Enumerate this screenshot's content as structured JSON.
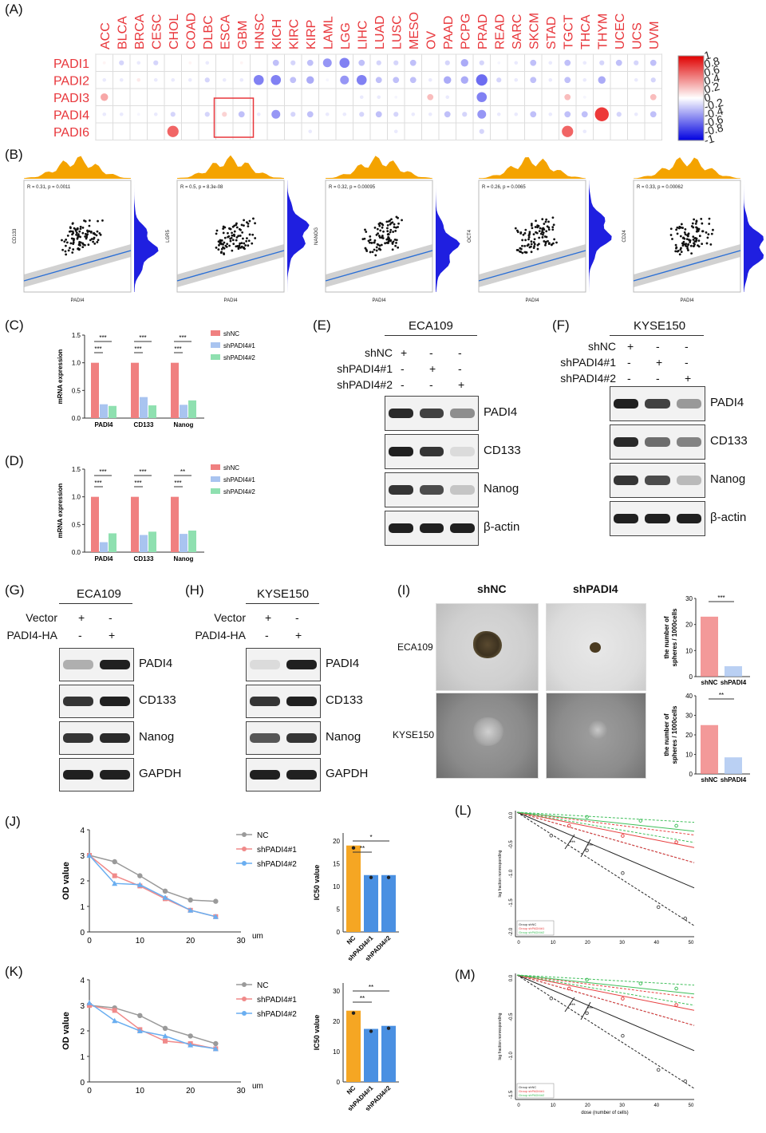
{
  "panel_labels": [
    "(A)",
    "(B)",
    "(C)",
    "(D)",
    "(E)",
    "(F)",
    "(G)",
    "(H)",
    "(I)",
    "(J)",
    "(K)",
    "(L)",
    "(M)"
  ],
  "colors": {
    "red": "#e8363b",
    "blue": "#3b3bd6",
    "salmon": "#f08080",
    "lightblue": "#a9c4f0",
    "mint": "#8fe0b0",
    "orange": "#f5a623",
    "barblue": "#4a90e2",
    "marginal_orange": "#f4a300",
    "marginal_blue": "#1f1fe0"
  },
  "panelA": {
    "cancers": [
      "ACC",
      "BLCA",
      "BRCA",
      "CESC",
      "CHOL",
      "COAD",
      "DLBC",
      "ESCA",
      "GBM",
      "HNSC",
      "KICH",
      "KIRC",
      "KIRP",
      "LAML",
      "LGG",
      "LIHC",
      "LUAD",
      "LUSC",
      "MESO",
      "OV",
      "PAAD",
      "PCPG",
      "PRAD",
      "READ",
      "SARC",
      "SKCM",
      "STAD",
      "TGCT",
      "THCA",
      "THYM",
      "UCEC",
      "UCS",
      "UVM"
    ],
    "genes": [
      "PADI1",
      "PADI2",
      "PADI3",
      "PADI4",
      "PADI6"
    ],
    "scale_labels": [
      "1",
      "0.8",
      "0.6",
      "0.4",
      "0.2",
      "0",
      "-0.2",
      "-0.4",
      "-0.6",
      "-0.8",
      "-1"
    ],
    "chart_data": {
      "type": "heatmap",
      "rows": [
        "PADI1",
        "PADI2",
        "PADI3",
        "PADI4",
        "PADI6"
      ],
      "columns": [
        "ACC",
        "BLCA",
        "BRCA",
        "CESC",
        "CHOL",
        "COAD",
        "DLBC",
        "ESCA",
        "GBM",
        "HNSC",
        "KICH",
        "KIRC",
        "KIRP",
        "LAML",
        "LGG",
        "LIHC",
        "LUAD",
        "LUSC",
        "MESO",
        "OV",
        "PAAD",
        "PCPG",
        "PRAD",
        "READ",
        "SARC",
        "SKCM",
        "STAD",
        "TGCT",
        "THCA",
        "THYM",
        "UCEC",
        "UCS",
        "UVM"
      ],
      "values": [
        [
          0.05,
          -0.2,
          -0.1,
          -0.2,
          0,
          0.05,
          -0.1,
          0,
          0.05,
          0,
          -0.3,
          -0.2,
          -0.3,
          -0.5,
          -0.6,
          -0.3,
          -0.2,
          -0.2,
          -0.3,
          0,
          -0.2,
          -0.4,
          -0.2,
          -0.05,
          -0.1,
          -0.3,
          -0.1,
          -0.3,
          -0.1,
          -0.2,
          -0.3,
          -0.2,
          -0.3
        ],
        [
          -0.1,
          -0.1,
          0.1,
          -0.1,
          -0.1,
          -0.1,
          -0.2,
          -0.1,
          -0.1,
          -0.6,
          -0.6,
          -0.3,
          -0.4,
          -0.05,
          -0.5,
          -0.6,
          -0.3,
          -0.3,
          -0.3,
          -0.1,
          -0.4,
          -0.4,
          -0.7,
          -0.2,
          -0.1,
          -0.3,
          -0.1,
          -0.3,
          -0.1,
          -0.4,
          0,
          -0.1,
          -0.2
        ],
        [
          0.4,
          0,
          0,
          0,
          0,
          0,
          0,
          0,
          0,
          0,
          0,
          0,
          0,
          0,
          0,
          -0.1,
          -0.1,
          -0.05,
          0,
          0.3,
          -0.1,
          0,
          -0.6,
          0,
          0,
          0,
          0,
          0.3,
          -0.05,
          0,
          0,
          0,
          0.3
        ],
        [
          -0.1,
          -0.1,
          -0.05,
          -0.1,
          -0.2,
          0,
          -0.2,
          0.2,
          -0.3,
          -0.1,
          -0.5,
          -0.2,
          -0.3,
          -0.1,
          -0.1,
          -0.2,
          -0.3,
          -0.2,
          -0.1,
          -0.1,
          -0.3,
          -0.2,
          -0.5,
          -0.1,
          -0.1,
          -0.3,
          -0.1,
          -0.3,
          -0.3,
          0.9,
          -0.2,
          -0.1,
          -0.3
        ],
        [
          0,
          0,
          0,
          0,
          0.7,
          0,
          0,
          0,
          0,
          0,
          0,
          0,
          -0.1,
          0,
          0,
          0,
          0,
          -0.1,
          0,
          0,
          0,
          0,
          -0.2,
          0,
          0,
          0,
          0,
          0.7,
          -0.1,
          0,
          0,
          0,
          0
        ]
      ],
      "legend_range": [
        -1,
        1
      ]
    }
  },
  "panelB": {
    "plots": [
      {
        "stat": "R = 0.31, p = 0.0011",
        "ylabel": "CD133",
        "xlabel": "PADI4"
      },
      {
        "stat": "R = 0.5, p = 8.3e-08",
        "ylabel": "LGR5",
        "xlabel": "PADI4"
      },
      {
        "stat": "R = 0.32, p = 0.00095",
        "ylabel": "NANOG",
        "xlabel": "PADI4"
      },
      {
        "stat": "R = 0.26, p = 0.0065",
        "ylabel": "OCT4",
        "xlabel": "PADI4"
      },
      {
        "stat": "R = 0.33, p = 0.00062",
        "ylabel": "CD24",
        "xlabel": "PADI4"
      }
    ]
  },
  "panelC": {
    "legend": [
      "shNC",
      "shPADI4#1",
      "shPADI4#2"
    ],
    "ylabel": "mRNA expression",
    "yticks": [
      "0.0",
      "0.5",
      "1.0",
      "1.5"
    ],
    "chart_data": {
      "type": "bar",
      "categories": [
        "PADI4",
        "CD133",
        "Nanog"
      ],
      "series": [
        {
          "name": "shNC",
          "values": [
            1.0,
            1.0,
            1.0
          ]
        },
        {
          "name": "shPADI4#1",
          "values": [
            0.25,
            0.38,
            0.24
          ]
        },
        {
          "name": "shPADI4#2",
          "values": [
            0.22,
            0.23,
            0.32
          ]
        }
      ],
      "ylabel": "mRNA expression",
      "ylim": [
        0,
        1.5
      ],
      "significance": [
        "***",
        "***",
        "***",
        "***",
        "***",
        "***"
      ]
    }
  },
  "panelD": {
    "legend": [
      "shNC",
      "shPADI4#1",
      "shPADI4#2"
    ],
    "ylabel": "mRNA expression",
    "yticks": [
      "0.0",
      "0.5",
      "1.0",
      "1.5"
    ],
    "chart_data": {
      "type": "bar",
      "categories": [
        "PADI4",
        "CD133",
        "Nanog"
      ],
      "series": [
        {
          "name": "shNC",
          "values": [
            1.0,
            1.0,
            1.0
          ]
        },
        {
          "name": "shPADI4#1",
          "values": [
            0.18,
            0.31,
            0.33
          ]
        },
        {
          "name": "shPADI4#2",
          "values": [
            0.34,
            0.37,
            0.39
          ]
        }
      ],
      "ylabel": "mRNA expression",
      "ylim": [
        0,
        1.5
      ],
      "significance": [
        "***",
        "***",
        "***",
        "***",
        "**",
        "***"
      ]
    }
  },
  "panelE": {
    "cell": "ECA109",
    "rows": [
      {
        "label": "shNC",
        "signs": [
          "+",
          "-",
          "-"
        ]
      },
      {
        "label": "shPADI4#1",
        "signs": [
          "-",
          "+",
          "-"
        ]
      },
      {
        "label": "shPADI4#2",
        "signs": [
          "-",
          "-",
          "+"
        ]
      }
    ],
    "blots": [
      "PADI4",
      "CD133",
      "Nanog",
      "β-actin"
    ]
  },
  "panelF": {
    "cell": "KYSE150",
    "rows": [
      {
        "label": "shNC",
        "signs": [
          "+",
          "-",
          "-"
        ]
      },
      {
        "label": "shPADI4#1",
        "signs": [
          "-",
          "+",
          "-"
        ]
      },
      {
        "label": "shPADI4#2",
        "signs": [
          "-",
          "-",
          "+"
        ]
      }
    ],
    "blots": [
      "PADI4",
      "CD133",
      "Nanog",
      "β-actin"
    ]
  },
  "panelG": {
    "cell": "ECA109",
    "rows": [
      {
        "label": "Vector",
        "signs": [
          "+",
          "-"
        ]
      },
      {
        "label": "PADI4-HA",
        "signs": [
          "-",
          "+"
        ]
      }
    ],
    "blots": [
      "PADI4",
      "CD133",
      "Nanog",
      "GAPDH"
    ]
  },
  "panelH": {
    "cell": "KYSE150",
    "rows": [
      {
        "label": "Vector",
        "signs": [
          "+",
          "-"
        ]
      },
      {
        "label": "PADI4-HA",
        "signs": [
          "-",
          "+"
        ]
      }
    ],
    "blots": [
      "PADI4",
      "CD133",
      "Nanog",
      "GAPDH"
    ]
  },
  "panelI": {
    "col_headers": [
      "shNC",
      "shPADI4"
    ],
    "row_labels": [
      "ECA109",
      "KYSE150"
    ],
    "ylabel_line1": "the number of",
    "ylabel_line2": "spheres / 1000cells",
    "charts": [
      {
        "type": "bar",
        "categories": [
          "shNC",
          "shPADI4"
        ],
        "values": [
          23,
          4
        ],
        "ylim": [
          0,
          30
        ],
        "yticks": [
          "0",
          "10",
          "20",
          "30"
        ],
        "sig": "***"
      },
      {
        "type": "bar",
        "categories": [
          "shNC",
          "shPADI4"
        ],
        "values": [
          25,
          8.5
        ],
        "ylim": [
          0,
          40
        ],
        "yticks": [
          "0",
          "10",
          "20",
          "30",
          "40"
        ],
        "sig": "**"
      }
    ]
  },
  "panelJ": {
    "legend": [
      "NC",
      "shPADI4#1",
      "shPADI4#2"
    ],
    "ylabel": "OD value",
    "xunit": "um",
    "xticks": [
      "0",
      "10",
      "20",
      "30"
    ],
    "yticks": [
      "0",
      "1",
      "2",
      "3",
      "4"
    ],
    "chart_data": {
      "type": "line",
      "x": [
        0,
        5,
        10,
        15,
        20,
        25
      ],
      "series": [
        {
          "name": "NC",
          "values": [
            3.0,
            2.75,
            2.2,
            1.6,
            1.25,
            1.2
          ]
        },
        {
          "name": "shPADI4#1",
          "values": [
            3.0,
            2.2,
            1.8,
            1.3,
            0.85,
            0.6
          ]
        },
        {
          "name": "shPADI4#2",
          "values": [
            3.0,
            1.9,
            1.85,
            1.35,
            0.85,
            0.6
          ]
        }
      ],
      "ylim": [
        0,
        4
      ],
      "xlim": [
        0,
        30
      ],
      "ylabel": "OD value",
      "xlabel": "um"
    },
    "ic50": {
      "ylabel": "IC50 value",
      "yticks": [
        "0",
        "5",
        "10",
        "15",
        "20"
      ],
      "categories": [
        "NC",
        "shPADI4#1",
        "shPADI4#2"
      ],
      "values": [
        19,
        12.5,
        12.5
      ],
      "ylim": [
        0,
        25
      ],
      "sig": [
        "**",
        "*"
      ]
    }
  },
  "panelK": {
    "legend": [
      "NC",
      "shPADI4#1",
      "shPADI4#2"
    ],
    "ylabel": "OD value",
    "xunit": "um",
    "xticks": [
      "0",
      "10",
      "20",
      "30"
    ],
    "yticks": [
      "0",
      "1",
      "2",
      "3",
      "4"
    ],
    "chart_data": {
      "type": "line",
      "x": [
        0,
        5,
        10,
        15,
        20,
        25
      ],
      "series": [
        {
          "name": "NC",
          "values": [
            3.0,
            2.9,
            2.6,
            2.1,
            1.8,
            1.5
          ]
        },
        {
          "name": "shPADI4#1",
          "values": [
            3.0,
            2.8,
            2.05,
            1.6,
            1.5,
            1.3
          ]
        },
        {
          "name": "shPADI4#2",
          "values": [
            3.1,
            2.4,
            2.0,
            1.8,
            1.45,
            1.3
          ]
        }
      ],
      "ylim": [
        0,
        4
      ],
      "xlim": [
        0,
        30
      ],
      "ylabel": "OD value",
      "xlabel": "um"
    },
    "ic50": {
      "ylabel": "IC50 value",
      "yticks": [
        "0",
        "10",
        "20",
        "30"
      ],
      "categories": [
        "NC",
        "shPADI4#1",
        "shPADI4#2"
      ],
      "values": [
        23.5,
        17.5,
        18.5
      ],
      "ylim": [
        0,
        30
      ],
      "sig": [
        "**",
        "**"
      ]
    }
  },
  "panelL": {
    "ylabel": "log fraction nonresponding",
    "xticks": [
      "0",
      "10",
      "20",
      "30",
      "40",
      "50"
    ],
    "yticks": [
      "0.0",
      "-0.5",
      "-1.0",
      "-1.5",
      "-2.0"
    ],
    "sig": [
      "***",
      "***"
    ],
    "legend": [
      "Group shNC",
      "Group shPADI4#1",
      "Group shPADI4#2"
    ]
  },
  "panelM": {
    "ylabel": "log fraction nonresponding",
    "xlabel": "dose (number of cells)",
    "xticks": [
      "0",
      "10",
      "20",
      "30",
      "40",
      "50"
    ],
    "yticks": [
      "0.0",
      "-0.5",
      "-1.0",
      "-1.5"
    ],
    "sig": [
      "***",
      "***"
    ],
    "legend": [
      "Group shNC",
      "Group shPADI4#1",
      "Group shPADI4#2"
    ]
  }
}
